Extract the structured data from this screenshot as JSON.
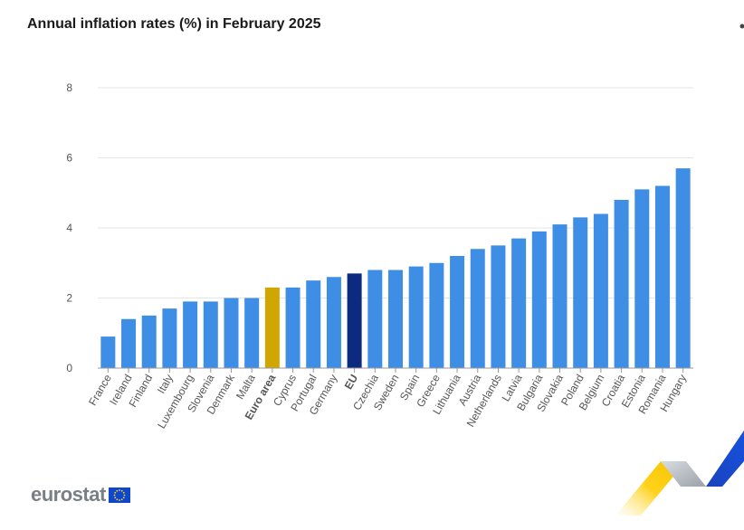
{
  "title": "Annual inflation rates (%) in February 2025",
  "brand": {
    "logo_text": "eurostat",
    "flag_icon": "eu-flag-icon"
  },
  "colors": {
    "bar": "#3e8ee6",
    "euro_area": "#cfa602",
    "eu": "#0c2a7e",
    "grid": "#e6e6e6",
    "axis_text": "#555555",
    "flag_blue": "#0e47cb",
    "flag_star": "#ffd617"
  },
  "chart_data": {
    "type": "bar",
    "categories": [
      "France",
      "Ireland",
      "Finland",
      "Italy",
      "Luxembourg",
      "Slovenia",
      "Denmark",
      "Malta",
      "Euro area",
      "Cyprus",
      "Portugal",
      "Germany",
      "EU",
      "Czechia",
      "Sweden",
      "Spain",
      "Greece",
      "Lithuania",
      "Austria",
      "Netherlands",
      "Latvia",
      "Bulgaria",
      "Slovakia",
      "Poland",
      "Belgium",
      "Croatia",
      "Estonia",
      "Romania",
      "Hungary"
    ],
    "values": [
      0.9,
      1.4,
      1.5,
      1.7,
      1.9,
      1.9,
      2.0,
      2.0,
      2.3,
      2.3,
      2.5,
      2.6,
      2.7,
      2.8,
      2.8,
      2.9,
      3.0,
      3.2,
      3.4,
      3.5,
      3.7,
      3.9,
      4.1,
      4.3,
      4.4,
      4.8,
      5.1,
      5.2,
      5.7
    ],
    "highlight": {
      "Euro area": "euro_area",
      "EU": "eu"
    },
    "bold_categories": [
      "Euro area",
      "EU"
    ],
    "ylim": [
      0,
      8
    ],
    "yticks": [
      0,
      2,
      4,
      6,
      8
    ],
    "title": "Annual inflation rates (%) in February 2025",
    "xlabel": "",
    "ylabel": "",
    "grid": true,
    "legend": "none"
  }
}
